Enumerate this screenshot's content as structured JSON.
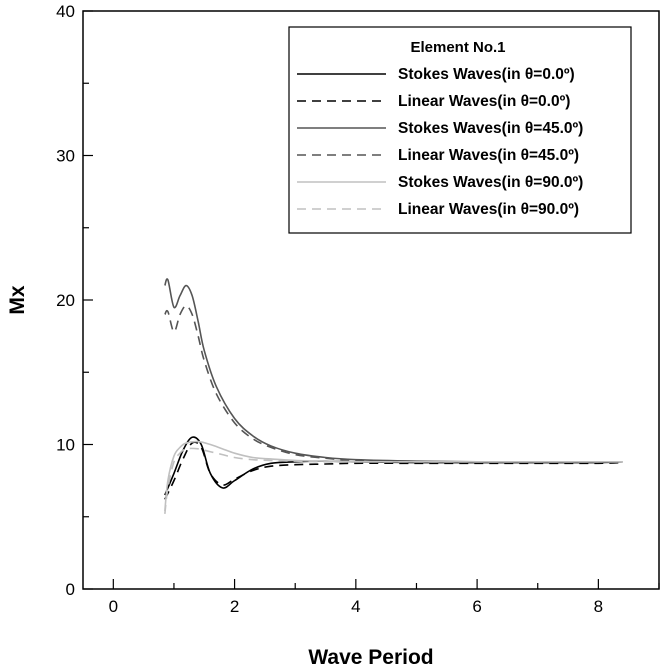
{
  "chart_data": {
    "type": "line",
    "title": "",
    "xlabel": "Wave Period",
    "ylabel": "Mx",
    "xlim": [
      -0.5,
      9
    ],
    "ylim": [
      0,
      40
    ],
    "x_ticks": [
      0,
      2,
      4,
      6,
      8
    ],
    "y_ticks": [
      0,
      10,
      20,
      30,
      40
    ],
    "grid": false,
    "legend": {
      "title": "Element No.1",
      "placement": "top-right"
    },
    "series": [
      {
        "name": "Stokes Waves(in θ=0.0º)",
        "color": "#000000",
        "dash": "solid",
        "x": [
          0.85,
          1.0,
          1.15,
          1.3,
          1.45,
          1.6,
          1.8,
          2.0,
          2.3,
          2.6,
          3.0,
          3.5,
          4.0,
          5.0,
          6.0,
          7.0,
          8.0,
          8.4
        ],
        "y": [
          6.5,
          8.0,
          9.6,
          10.5,
          10.0,
          8.0,
          7.0,
          7.5,
          8.3,
          8.7,
          8.8,
          8.85,
          8.8,
          8.75,
          8.75,
          8.75,
          8.75,
          8.8
        ]
      },
      {
        "name": "Linear Waves(in θ=0.0º)",
        "color": "#000000",
        "dash": "dashed",
        "x": [
          0.85,
          1.0,
          1.15,
          1.3,
          1.45,
          1.6,
          1.8,
          2.0,
          2.3,
          2.6,
          3.0,
          3.5,
          4.0,
          5.0,
          6.0,
          7.0,
          8.0,
          8.4
        ],
        "y": [
          6.2,
          7.5,
          9.0,
          10.1,
          9.8,
          8.0,
          7.2,
          7.6,
          8.2,
          8.5,
          8.6,
          8.65,
          8.7,
          8.7,
          8.7,
          8.7,
          8.7,
          8.75
        ]
      },
      {
        "name": "Stokes Waves(in θ=45.0º)",
        "color": "#555555",
        "dash": "solid",
        "x": [
          0.85,
          0.9,
          1.0,
          1.1,
          1.2,
          1.3,
          1.4,
          1.5,
          1.7,
          2.0,
          2.3,
          2.6,
          3.0,
          3.5,
          4.0,
          5.0,
          6.0,
          7.0,
          8.0
        ],
        "y": [
          21.0,
          21.4,
          19.5,
          20.3,
          21.0,
          20.3,
          18.5,
          16.5,
          14.0,
          11.8,
          10.6,
          9.9,
          9.4,
          9.1,
          8.95,
          8.85,
          8.8,
          8.8,
          8.8
        ]
      },
      {
        "name": "Linear Waves(in θ=45.0º)",
        "color": "#555555",
        "dash": "dashed",
        "x": [
          0.85,
          0.9,
          1.0,
          1.1,
          1.2,
          1.3,
          1.4,
          1.5,
          1.7,
          2.0,
          2.3,
          2.6,
          3.0,
          3.5,
          4.0,
          5.0,
          6.0,
          7.0,
          8.0
        ],
        "y": [
          19.0,
          19.2,
          17.8,
          19.0,
          19.6,
          19.0,
          17.5,
          15.8,
          13.5,
          11.5,
          10.4,
          9.8,
          9.3,
          9.05,
          8.9,
          8.8,
          8.8,
          8.8,
          8.8
        ]
      },
      {
        "name": "Stokes Waves(in θ=90.0º)",
        "color": "#c0c0c0",
        "dash": "solid",
        "x": [
          0.85,
          0.9,
          1.0,
          1.1,
          1.2,
          1.4,
          1.6,
          1.8,
          2.0,
          2.3,
          2.6,
          3.0,
          3.5,
          4.0,
          5.0,
          6.0,
          7.0,
          8.0,
          8.4
        ],
        "y": [
          5.4,
          7.5,
          9.2,
          9.8,
          10.1,
          10.2,
          10.0,
          9.7,
          9.4,
          9.1,
          9.0,
          8.9,
          8.85,
          8.8,
          8.8,
          8.8,
          8.8,
          8.8,
          8.8
        ]
      },
      {
        "name": "Linear Waves(in θ=90.0º)",
        "color": "#c0c0c0",
        "dash": "dashed",
        "x": [
          0.85,
          0.9,
          1.0,
          1.1,
          1.2,
          1.4,
          1.6,
          1.8,
          2.0,
          2.3,
          2.6,
          3.0,
          3.5,
          4.0,
          5.0,
          6.0,
          7.0,
          8.0,
          8.4
        ],
        "y": [
          5.2,
          7.0,
          8.8,
          9.4,
          9.7,
          9.7,
          9.5,
          9.3,
          9.1,
          8.95,
          8.9,
          8.85,
          8.8,
          8.8,
          8.8,
          8.8,
          8.8,
          8.8,
          8.8
        ]
      }
    ]
  }
}
